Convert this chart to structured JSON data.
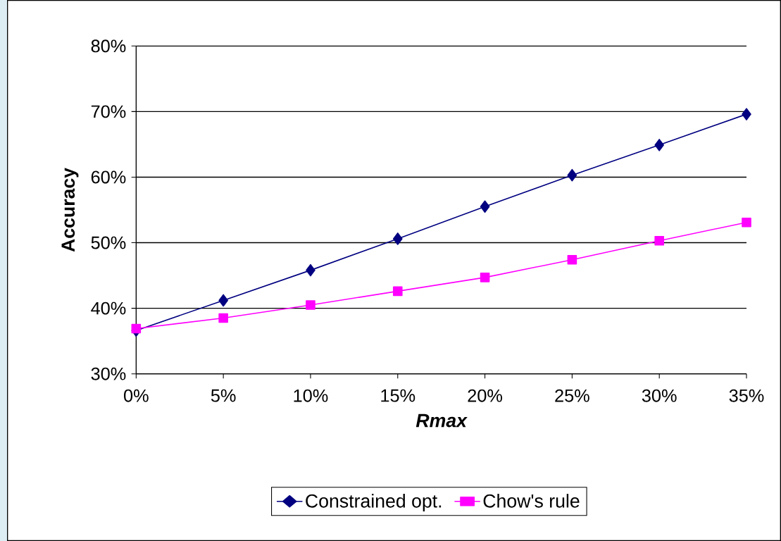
{
  "chart_data": {
    "type": "line",
    "xlabel": "Rmax",
    "ylabel": "Accuracy",
    "x": [
      0,
      5,
      10,
      15,
      20,
      25,
      30,
      35
    ],
    "series": [
      {
        "name": "Constrained opt.",
        "color": "#000080",
        "marker": "diamond",
        "values": [
          36.6,
          41.2,
          45.8,
          50.6,
          55.5,
          60.3,
          64.9,
          69.6
        ]
      },
      {
        "name": "Chow's rule",
        "color": "#ff00ff",
        "marker": "square",
        "values": [
          36.9,
          38.5,
          40.5,
          42.6,
          44.7,
          47.4,
          50.3,
          53.1
        ]
      }
    ],
    "xlim": [
      0,
      35
    ],
    "ylim": [
      30,
      80
    ],
    "xticks": [
      {
        "value": 0,
        "label": "0%"
      },
      {
        "value": 5,
        "label": "5%"
      },
      {
        "value": 10,
        "label": "10%"
      },
      {
        "value": 15,
        "label": "15%"
      },
      {
        "value": 20,
        "label": "20%"
      },
      {
        "value": 25,
        "label": "25%"
      },
      {
        "value": 30,
        "label": "30%"
      },
      {
        "value": 35,
        "label": "35%"
      }
    ],
    "yticks": [
      {
        "value": 30,
        "label": "30%"
      },
      {
        "value": 40,
        "label": "40%"
      },
      {
        "value": 50,
        "label": "50%"
      },
      {
        "value": 60,
        "label": "60%"
      },
      {
        "value": 70,
        "label": "70%"
      },
      {
        "value": 80,
        "label": "80%"
      }
    ],
    "grid": "y",
    "legend": "bottom",
    "line_style": "solid"
  }
}
